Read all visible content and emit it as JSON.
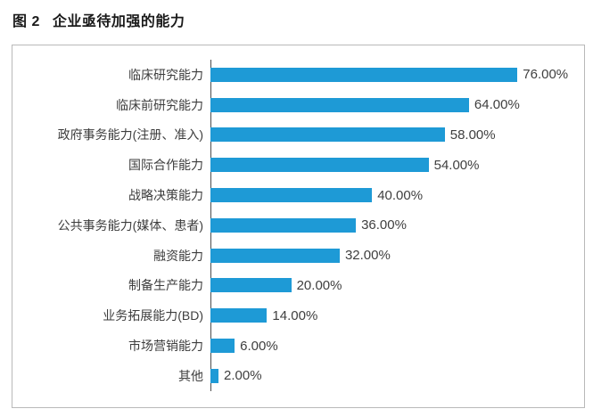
{
  "figure": {
    "label": "图 2",
    "title": "企业亟待加强的能力"
  },
  "chart_data": {
    "type": "bar",
    "orientation": "horizontal",
    "title": "企业亟待加强的能力",
    "categories": [
      "临床研究能力",
      "临床前研究能力",
      "政府事务能力(注册、准入)",
      "国际合作能力",
      "战略决策能力",
      "公共事务能力(媒体、患者)",
      "融资能力",
      "制备生产能力",
      "业务拓展能力(BD)",
      "市场营销能力",
      "其他"
    ],
    "values": [
      76,
      64,
      58,
      54,
      40,
      36,
      32,
      20,
      14,
      6,
      2
    ],
    "value_labels": [
      "76.00%",
      "64.00%",
      "58.00%",
      "54.00%",
      "40.00%",
      "36.00%",
      "32.00%",
      "20.00%",
      "14.00%",
      "6.00%",
      "2.00%"
    ],
    "xlim": [
      0,
      80
    ],
    "grid": false,
    "legend": "none",
    "bar_color": "#1e9ad6",
    "label_color": "#3d3d3d",
    "value_label_color": "#3f3f3f"
  }
}
